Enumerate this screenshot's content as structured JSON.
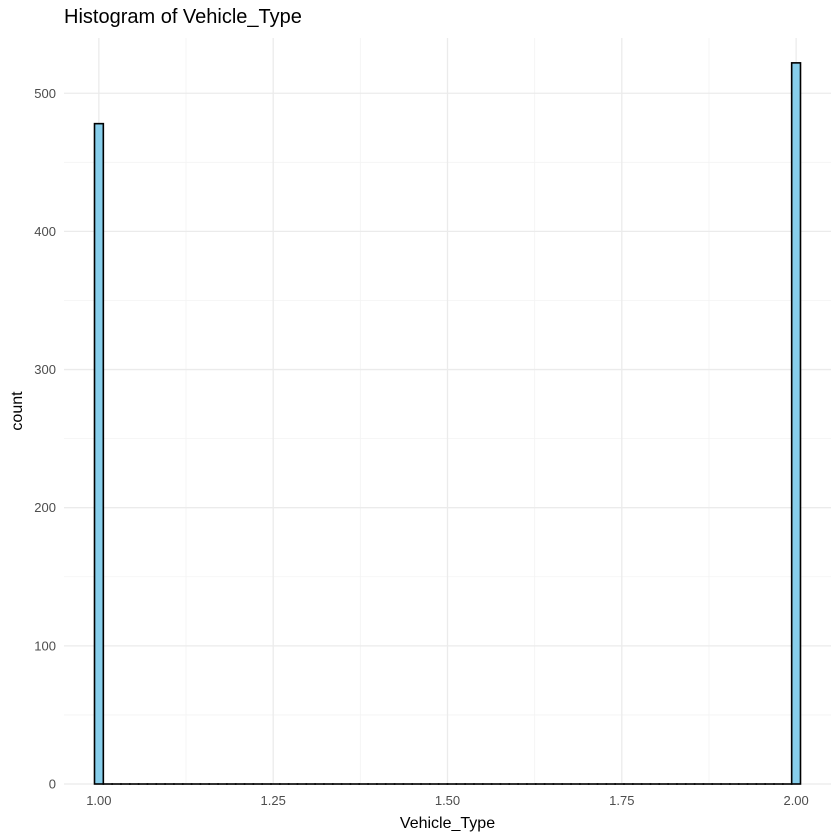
{
  "chart_data": {
    "type": "bar",
    "title": "Histogram of Vehicle_Type",
    "xlabel": "Vehicle_Type",
    "ylabel": "count",
    "xlim": [
      0.95,
      2.05
    ],
    "ylim": [
      0,
      540
    ],
    "x_ticks": [
      1.0,
      1.25,
      1.5,
      1.75,
      2.0
    ],
    "x_tick_labels": [
      "1.00",
      "1.25",
      "1.50",
      "1.75",
      "2.00"
    ],
    "y_ticks": [
      0,
      100,
      200,
      300,
      400,
      500
    ],
    "y_tick_labels": [
      "0",
      "100",
      "200",
      "300",
      "400",
      "500"
    ],
    "bin_count": 80,
    "bin_range": [
      0.99375,
      2.00625
    ],
    "bars": [
      {
        "x": 1.0,
        "count": 478
      },
      {
        "x": 2.0,
        "count": 522
      }
    ],
    "fill_color": "#87ceeb",
    "outline_color": "#000000",
    "grid": true,
    "legend": "none"
  }
}
